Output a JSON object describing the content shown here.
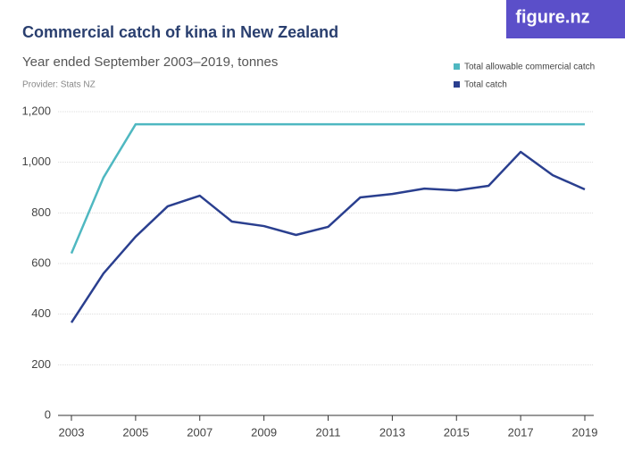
{
  "chart_data": {
    "type": "line",
    "title": "Commercial catch of kina in New Zealand",
    "subtitle": "Year ended September 2003–2019, tonnes",
    "provider": "Provider: Stats NZ",
    "logo": "figure.nz",
    "x": [
      2003,
      2004,
      2005,
      2006,
      2007,
      2008,
      2009,
      2010,
      2011,
      2012,
      2013,
      2014,
      2015,
      2016,
      2017,
      2018,
      2019
    ],
    "series": [
      {
        "name": "Total allowable commercial catch",
        "color": "#4fb8c1",
        "values": [
          640,
          940,
          1150,
          1150,
          1150,
          1150,
          1150,
          1150,
          1150,
          1150,
          1150,
          1150,
          1150,
          1150,
          1150,
          1150,
          1150
        ]
      },
      {
        "name": "Total catch",
        "color": "#2a3f8f",
        "values": [
          367,
          561,
          706,
          826,
          868,
          766,
          748,
          713,
          745,
          861,
          875,
          896,
          889,
          907,
          1041,
          949,
          893
        ]
      }
    ],
    "xlim": [
      2003,
      2019
    ],
    "xticks": [
      2003,
      2005,
      2007,
      2009,
      2011,
      2013,
      2015,
      2017,
      2019
    ],
    "ylim": [
      0,
      1200
    ],
    "yticks": [
      0,
      200,
      400,
      600,
      800,
      {
        "value": 1000,
        "label": "1,000"
      },
      {
        "value": 1200,
        "label": "1,200"
      }
    ],
    "grid": true,
    "legend": "top-right"
  }
}
